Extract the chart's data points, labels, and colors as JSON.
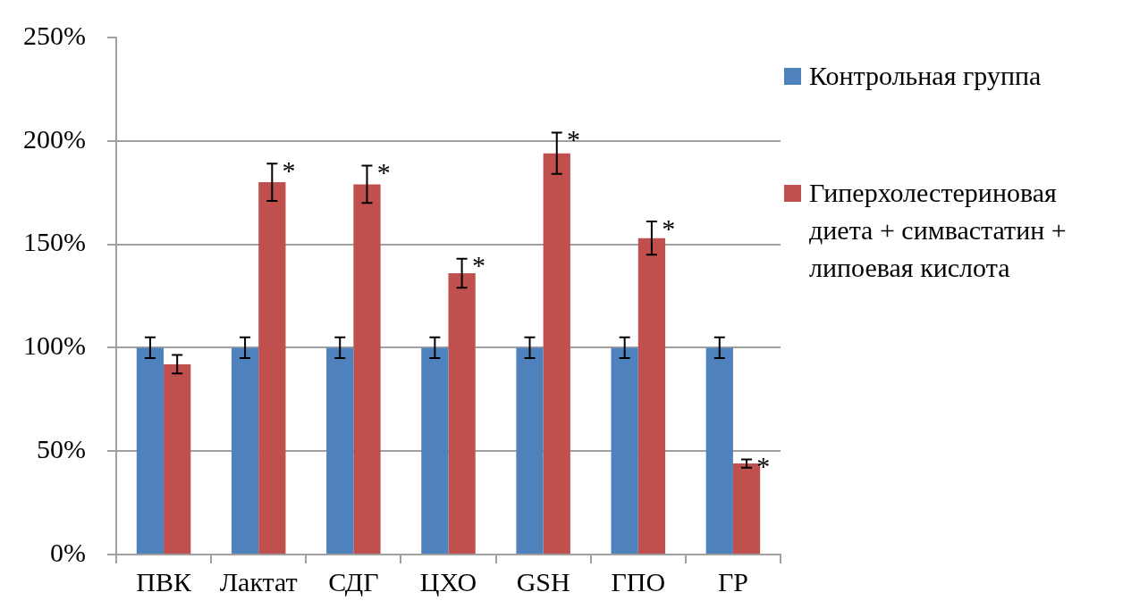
{
  "chart_data": {
    "type": "bar",
    "categories": [
      "ПВК",
      "Лактат",
      "СДГ",
      "ЦХО",
      "GSH",
      "ГПО",
      "ГР"
    ],
    "series": [
      {
        "name": "Контрольная группа",
        "color": "#4f81bd",
        "values": [
          100,
          100,
          100,
          100,
          100,
          100,
          100
        ],
        "errors": [
          5,
          5,
          5,
          5,
          5,
          5,
          5
        ]
      },
      {
        "name": "Гиперхолестериновая диета + симвастатин + липоевая кислота",
        "color": "#c0504d",
        "values": [
          92,
          180,
          179,
          136,
          194,
          153,
          44
        ],
        "errors": [
          4.5,
          9,
          9,
          7,
          10,
          8,
          2
        ]
      }
    ],
    "ylim": [
      0,
      250
    ],
    "yticks": [
      {
        "value": 0,
        "label": "0%"
      },
      {
        "value": 50,
        "label": "50%"
      },
      {
        "value": 100,
        "label": "100%"
      },
      {
        "value": 150,
        "label": "150%"
      },
      {
        "value": 200,
        "label": "200%"
      },
      {
        "value": 250,
        "label": "250%"
      }
    ],
    "grid": "y",
    "legend": "right",
    "annotations": [
      {
        "text": "*",
        "x": "Лактат",
        "y": 180
      },
      {
        "text": "*",
        "x": "СДГ",
        "y": 179
      },
      {
        "text": "*",
        "x": "ЦХО",
        "y": 136
      },
      {
        "text": "*",
        "x": "GSH",
        "y": 194
      },
      {
        "text": "*",
        "x": "ГПО",
        "y": 153
      },
      {
        "text": "*",
        "x": "ГР",
        "y": 44
      }
    ]
  }
}
